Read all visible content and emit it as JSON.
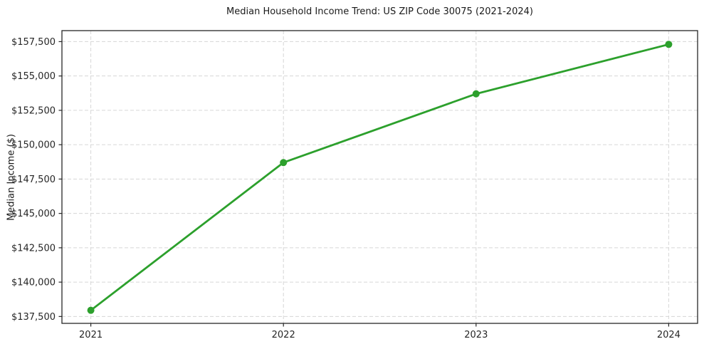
{
  "figure": {
    "background": "#ffffff"
  },
  "chart_data": {
    "type": "line",
    "title": "Median Household Income Trend: US ZIP Code 30075 (2021-2024)",
    "xlabel": "",
    "ylabel": "Median Income ($)",
    "categories": [
      "2021",
      "2022",
      "2023",
      "2024"
    ],
    "x_values": [
      2021,
      2022,
      2023,
      2024
    ],
    "values": [
      137950,
      148700,
      153700,
      157300
    ],
    "y_ticks": {
      "values": [
        137500,
        140000,
        142500,
        145000,
        147500,
        150000,
        152500,
        155000,
        157500
      ],
      "labels": [
        "$137,500",
        "$140,000",
        "$142,500",
        "$145,000",
        "$147,500",
        "$150,000",
        "$152,500",
        "$155,000",
        "$157,500"
      ]
    },
    "xlim": [
      2020.85,
      2024.15
    ],
    "ylim": [
      137000,
      158300
    ],
    "grid": true,
    "grid_style": "dashed",
    "legend": "none",
    "colors": {
      "line": "#2ca02c",
      "marker": "#2ca02c",
      "grid": "#d6d6d6",
      "axis": "#262626",
      "text": "#262626",
      "background": "#ffffff"
    }
  }
}
